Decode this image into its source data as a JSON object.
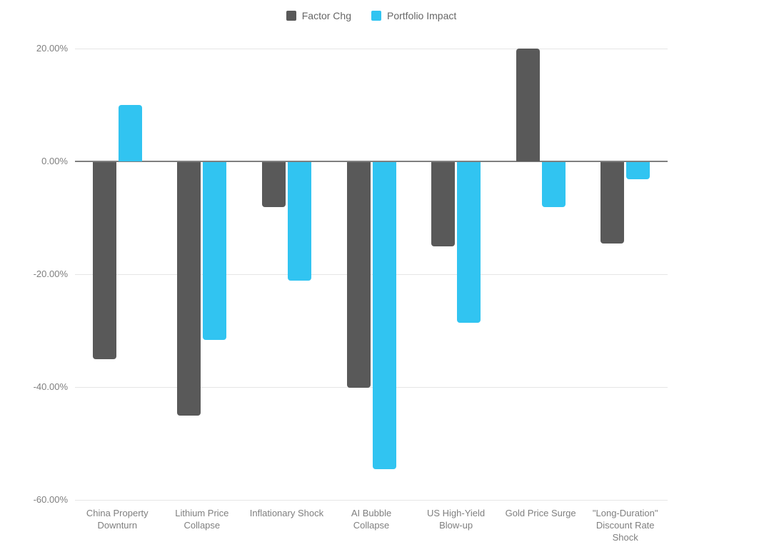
{
  "chart_data": {
    "type": "bar",
    "title": "",
    "categories": [
      "China Property Downturn",
      "Lithium Price Collapse",
      "Inflationary Shock",
      "AI Bubble Collapse",
      "US High-Yield Blow-up",
      "Gold Price Surge",
      "\"Long-Duration\" Discount Rate Shock"
    ],
    "series": [
      {
        "name": "Factor Chg",
        "color": "#595959",
        "values": [
          -35,
          -45,
          -8,
          -40,
          -15,
          20,
          -14.5
        ]
      },
      {
        "name": "Portfolio Impact",
        "color": "#31C4F1",
        "values": [
          10,
          -31.5,
          -21,
          -54.5,
          -28.5,
          -8,
          -3
        ]
      }
    ],
    "yticks": [
      {
        "value": 20,
        "label": "20.00%"
      },
      {
        "value": 0,
        "label": "0.00%"
      },
      {
        "value": -20,
        "label": "-20.00%"
      },
      {
        "value": -40,
        "label": "-40.00%"
      },
      {
        "value": -60,
        "label": "-60.00%"
      }
    ],
    "ylim": [
      -60,
      20
    ],
    "xlabel": "",
    "ylabel": "",
    "grid": true,
    "legend_position": "top",
    "value_format": "percent"
  },
  "colors": {
    "background": "#ffffff",
    "gridline": "#e6e6e6",
    "zero_line": "#7f7f7f",
    "tick_text": "#7f7f7f",
    "legend_text": "#666666",
    "factor_chg": "#595959",
    "portfolio_impact": "#31C4F1"
  }
}
